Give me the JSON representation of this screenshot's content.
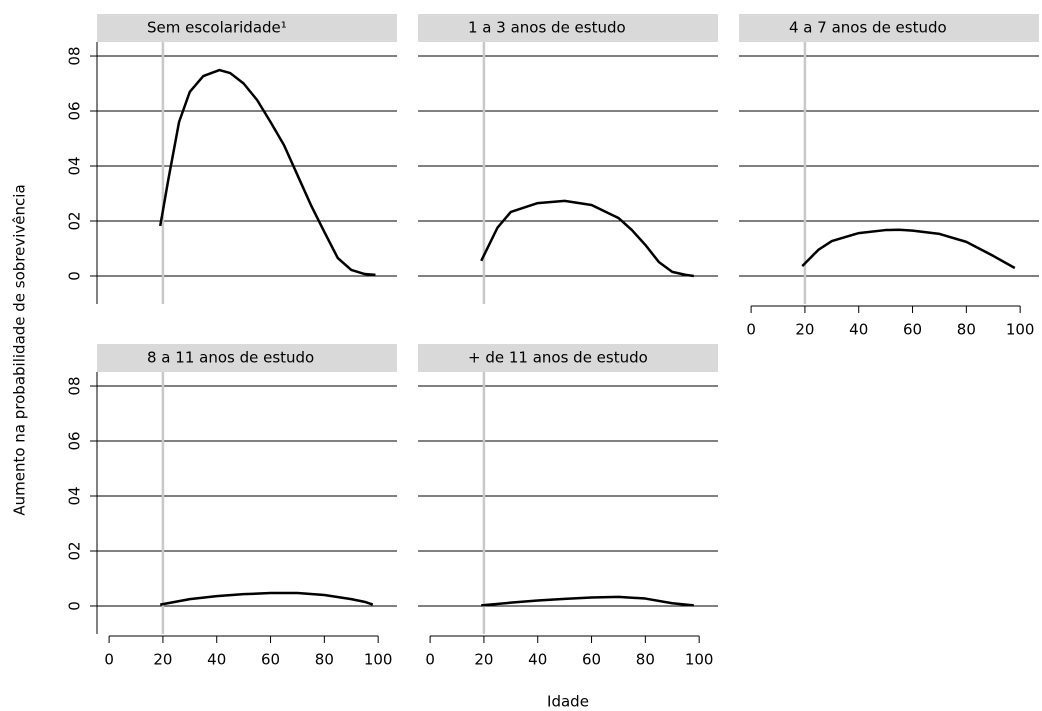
{
  "xlabel": "Idade",
  "ylabel": "Aumento na probabilidade de sobrevivência",
  "chart_data": [
    {
      "type": "line",
      "title": "Sem escolaridade¹",
      "color": "#000000",
      "ref_x": 20,
      "x": [
        19,
        22,
        26,
        30,
        35,
        41,
        45,
        50,
        55,
        60,
        65,
        70,
        75,
        80,
        85,
        90,
        95,
        99
      ],
      "values": [
        0.0182,
        0.035,
        0.056,
        0.067,
        0.0727,
        0.0749,
        0.0738,
        0.07,
        0.064,
        0.056,
        0.0476,
        0.0367,
        0.0258,
        0.016,
        0.0065,
        0.0022,
        0.0007,
        0.0004
      ],
      "xlim": [
        -4.5,
        107
      ],
      "xticks": [
        0,
        20,
        40,
        60,
        80,
        100
      ],
      "ylim": [
        -0.0051,
        0.0851
      ],
      "yticks": [
        {
          "value": 0,
          "label": "0"
        },
        {
          "value": 0.02,
          "label": "02"
        },
        {
          "value": 0.04,
          "label": "04"
        },
        {
          "value": 0.06,
          "label": "06"
        },
        {
          "value": 0.08,
          "label": "08"
        }
      ]
    },
    {
      "type": "line",
      "title": "1 a 3 anos de estudo",
      "color": "#000000",
      "ref_x": 20,
      "x": [
        19,
        25,
        30,
        40,
        50,
        60,
        70,
        75,
        80,
        85,
        90,
        95,
        98
      ],
      "values": [
        0.0055,
        0.0175,
        0.0233,
        0.0265,
        0.0273,
        0.0258,
        0.0211,
        0.0167,
        0.0113,
        0.0051,
        0.0015,
        0.0004,
        0
      ],
      "xlim": [
        -4.5,
        107
      ],
      "xticks": [
        0,
        20,
        40,
        60,
        80,
        100
      ],
      "ylim": [
        -0.0051,
        0.0851
      ],
      "yticks": [
        {
          "value": 0,
          "label": "0"
        },
        {
          "value": 0.02,
          "label": "02"
        },
        {
          "value": 0.04,
          "label": "04"
        },
        {
          "value": 0.06,
          "label": "06"
        },
        {
          "value": 0.08,
          "label": "08"
        }
      ]
    },
    {
      "type": "line",
      "title": "4 a 7 anos de estudo",
      "color": "#000000",
      "ref_x": 20,
      "x": [
        19,
        25,
        30,
        40,
        50,
        55,
        60,
        70,
        80,
        90,
        98
      ],
      "values": [
        0.0036,
        0.0095,
        0.0127,
        0.0156,
        0.0167,
        0.0168,
        0.0165,
        0.0153,
        0.0124,
        0.0073,
        0.0029
      ],
      "xlim": [
        -4.5,
        107
      ],
      "xticks": [
        0,
        20,
        40,
        60,
        80,
        100
      ],
      "ylim": [
        -0.0051,
        0.0851
      ],
      "yticks": [
        {
          "value": 0,
          "label": "0"
        },
        {
          "value": 0.02,
          "label": "02"
        },
        {
          "value": 0.04,
          "label": "04"
        },
        {
          "value": 0.06,
          "label": "06"
        },
        {
          "value": 0.08,
          "label": "08"
        }
      ]
    },
    {
      "type": "line",
      "title": "8 a 11 anos de estudo",
      "color": "#000000",
      "ref_x": 20,
      "x": [
        19,
        30,
        40,
        50,
        60,
        70,
        80,
        90,
        95,
        98
      ],
      "values": [
        0.0005,
        0.0025,
        0.0036,
        0.0043,
        0.0047,
        0.0047,
        0.004,
        0.0025,
        0.0015,
        0.0005
      ],
      "xlim": [
        -4.5,
        107
      ],
      "xticks": [
        0,
        20,
        40,
        60,
        80,
        100
      ],
      "ylim": [
        -0.0051,
        0.0851
      ],
      "yticks": [
        {
          "value": 0,
          "label": "0"
        },
        {
          "value": 0.02,
          "label": "02"
        },
        {
          "value": 0.04,
          "label": "04"
        },
        {
          "value": 0.06,
          "label": "06"
        },
        {
          "value": 0.08,
          "label": "08"
        }
      ]
    },
    {
      "type": "line",
      "title": "+ de 11 anos de estudo",
      "color": "#000000",
      "ref_x": 20,
      "x": [
        19,
        30,
        40,
        50,
        60,
        70,
        80,
        90,
        98
      ],
      "values": [
        0.0002,
        0.0012,
        0.002,
        0.0026,
        0.0031,
        0.0033,
        0.0027,
        0.001,
        0.0002
      ],
      "xlim": [
        -4.5,
        107
      ],
      "xticks": [
        0,
        20,
        40,
        60,
        80,
        100
      ],
      "ylim": [
        -0.0051,
        0.0851
      ],
      "yticks": [
        {
          "value": 0,
          "label": "0"
        },
        {
          "value": 0.02,
          "label": "02"
        },
        {
          "value": 0.04,
          "label": "04"
        },
        {
          "value": 0.06,
          "label": "06"
        },
        {
          "value": 0.08,
          "label": "08"
        }
      ]
    }
  ]
}
